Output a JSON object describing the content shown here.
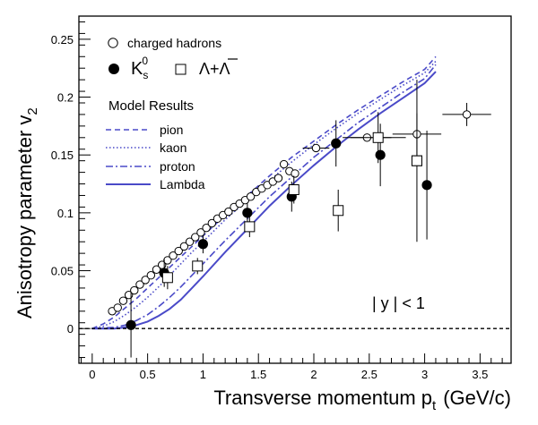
{
  "chart_data": {
    "type": "scatter",
    "xlabel": "Transverse momentum p",
    "xlabel_sub": "t",
    "xlabel_unit": "(GeV/c)",
    "ylabel": "Anisotropy parameter v",
    "ylabel_sub": "2",
    "xlim": [
      -0.12,
      3.78
    ],
    "ylim": [
      -0.03,
      0.27
    ],
    "x_ticks": [
      0,
      0.5,
      1,
      1.5,
      2,
      2.5,
      3,
      3.5
    ],
    "x_tick_labels": [
      "0",
      "0.5",
      "1",
      "1.5",
      "2",
      "2.5",
      "3",
      "3.5"
    ],
    "y_ticks": [
      0,
      0.05,
      0.1,
      0.15,
      0.2,
      0.25
    ],
    "y_tick_labels": [
      "0",
      "0.05",
      "0.1",
      "0.15",
      "0.2",
      "0.25"
    ],
    "grid": false,
    "zero_line": true,
    "annotation": "| y | < 1",
    "legend": {
      "charged_label": "charged hadrons",
      "ks_label": "K",
      "ks_sub": "s",
      "ks_sup": "0",
      "lambda_label": "Λ+Λ",
      "model_title": "Model Results",
      "pion_label": "pion",
      "kaon_label": "kaon",
      "proton_label": "proton",
      "lambda_model_label": "Lambda"
    },
    "colors": {
      "model": "#4a4ac8",
      "axis": "#000000"
    },
    "series": [
      {
        "name": "charged hadrons",
        "marker": "open-circle",
        "points": [
          {
            "x": 0.18,
            "y": 0.015
          },
          {
            "x": 0.23,
            "y": 0.018
          },
          {
            "x": 0.28,
            "y": 0.024
          },
          {
            "x": 0.33,
            "y": 0.029
          },
          {
            "x": 0.38,
            "y": 0.033
          },
          {
            "x": 0.43,
            "y": 0.038
          },
          {
            "x": 0.48,
            "y": 0.042
          },
          {
            "x": 0.53,
            "y": 0.046
          },
          {
            "x": 0.58,
            "y": 0.051
          },
          {
            "x": 0.63,
            "y": 0.055
          },
          {
            "x": 0.68,
            "y": 0.059
          },
          {
            "x": 0.73,
            "y": 0.063
          },
          {
            "x": 0.78,
            "y": 0.067
          },
          {
            "x": 0.83,
            "y": 0.071
          },
          {
            "x": 0.88,
            "y": 0.075
          },
          {
            "x": 0.93,
            "y": 0.079
          },
          {
            "x": 0.98,
            "y": 0.083
          },
          {
            "x": 1.03,
            "y": 0.087
          },
          {
            "x": 1.08,
            "y": 0.091
          },
          {
            "x": 1.13,
            "y": 0.095
          },
          {
            "x": 1.18,
            "y": 0.098
          },
          {
            "x": 1.23,
            "y": 0.101
          },
          {
            "x": 1.28,
            "y": 0.105
          },
          {
            "x": 1.33,
            "y": 0.108
          },
          {
            "x": 1.38,
            "y": 0.111
          },
          {
            "x": 1.43,
            "y": 0.114
          },
          {
            "x": 1.48,
            "y": 0.118
          },
          {
            "x": 1.53,
            "y": 0.121
          },
          {
            "x": 1.58,
            "y": 0.124
          },
          {
            "x": 1.63,
            "y": 0.127
          },
          {
            "x": 1.68,
            "y": 0.13
          },
          {
            "x": 1.73,
            "y": 0.142
          },
          {
            "x": 1.78,
            "y": 0.136
          },
          {
            "x": 1.83,
            "y": 0.134
          },
          {
            "x": 2.02,
            "y": 0.156,
            "xerr": 0.12
          },
          {
            "x": 2.48,
            "y": 0.165,
            "xerr": 0.22
          },
          {
            "x": 2.93,
            "y": 0.168,
            "xerr": 0.22,
            "yerr": 0.018
          },
          {
            "x": 3.38,
            "y": 0.185,
            "xerr": 0.22,
            "yerr": 0.01
          }
        ]
      },
      {
        "name": "K",
        "marker": "filled-circle",
        "points": [
          {
            "x": 0.35,
            "y": 0.003,
            "yerr": 0.028
          },
          {
            "x": 0.65,
            "y": 0.048,
            "yerr": 0.012
          },
          {
            "x": 1.0,
            "y": 0.073,
            "yerr": 0.008
          },
          {
            "x": 1.4,
            "y": 0.1,
            "yerr": 0.008
          },
          {
            "x": 1.8,
            "y": 0.114,
            "yerr": 0.013
          },
          {
            "x": 2.2,
            "y": 0.16,
            "yerr": 0.02
          },
          {
            "x": 2.6,
            "y": 0.15,
            "yerr": 0.027
          },
          {
            "x": 3.02,
            "y": 0.124,
            "yerr": 0.047
          }
        ]
      },
      {
        "name": "Λ+Λ",
        "marker": "open-square",
        "points": [
          {
            "x": 0.68,
            "y": 0.044,
            "yerr": 0.01
          },
          {
            "x": 0.95,
            "y": 0.054,
            "yerr": 0.007
          },
          {
            "x": 1.42,
            "y": 0.088,
            "yerr": 0.009
          },
          {
            "x": 1.82,
            "y": 0.12,
            "yerr": 0.012
          },
          {
            "x": 2.22,
            "y": 0.102,
            "yerr": 0.018
          },
          {
            "x": 2.58,
            "y": 0.165,
            "yerr": 0.022,
            "xerr": 0.25
          },
          {
            "x": 2.93,
            "y": 0.145,
            "yerr": 0.07
          },
          {
            "x": 2.93,
            "y": 0.145
          }
        ]
      },
      {
        "name": "pion",
        "style": "dashed",
        "points": [
          [
            0,
            0
          ],
          [
            0.1,
            0.004
          ],
          [
            0.2,
            0.01
          ],
          [
            0.3,
            0.018
          ],
          [
            0.4,
            0.026
          ],
          [
            0.5,
            0.035
          ],
          [
            0.6,
            0.044
          ],
          [
            0.7,
            0.053
          ],
          [
            0.8,
            0.062
          ],
          [
            0.9,
            0.071
          ],
          [
            1.0,
            0.08
          ],
          [
            1.2,
            0.098
          ],
          [
            1.4,
            0.115
          ],
          [
            1.6,
            0.132
          ],
          [
            1.8,
            0.148
          ],
          [
            2.0,
            0.162
          ],
          [
            2.2,
            0.176
          ],
          [
            2.4,
            0.189
          ],
          [
            2.6,
            0.201
          ],
          [
            2.8,
            0.213
          ],
          [
            3.0,
            0.224
          ],
          [
            3.1,
            0.235
          ]
        ]
      },
      {
        "name": "kaon",
        "style": "dotted",
        "points": [
          [
            0,
            0
          ],
          [
            0.1,
            0.002
          ],
          [
            0.2,
            0.006
          ],
          [
            0.3,
            0.012
          ],
          [
            0.4,
            0.019
          ],
          [
            0.5,
            0.027
          ],
          [
            0.6,
            0.036
          ],
          [
            0.7,
            0.046
          ],
          [
            0.8,
            0.056
          ],
          [
            0.9,
            0.066
          ],
          [
            1.0,
            0.075
          ],
          [
            1.2,
            0.094
          ],
          [
            1.4,
            0.111
          ],
          [
            1.6,
            0.128
          ],
          [
            1.8,
            0.144
          ],
          [
            2.0,
            0.159
          ],
          [
            2.2,
            0.173
          ],
          [
            2.4,
            0.186
          ],
          [
            2.6,
            0.198
          ],
          [
            2.8,
            0.21
          ],
          [
            3.0,
            0.221
          ],
          [
            3.1,
            0.231
          ]
        ]
      },
      {
        "name": "proton",
        "style": "dashdot",
        "points": [
          [
            0,
            0
          ],
          [
            0.2,
            0.001
          ],
          [
            0.3,
            0.003
          ],
          [
            0.4,
            0.007
          ],
          [
            0.5,
            0.012
          ],
          [
            0.6,
            0.019
          ],
          [
            0.7,
            0.027
          ],
          [
            0.8,
            0.036
          ],
          [
            0.9,
            0.046
          ],
          [
            1.0,
            0.056
          ],
          [
            1.2,
            0.076
          ],
          [
            1.4,
            0.095
          ],
          [
            1.6,
            0.114
          ],
          [
            1.8,
            0.131
          ],
          [
            2.0,
            0.148
          ],
          [
            2.2,
            0.163
          ],
          [
            2.4,
            0.178
          ],
          [
            2.6,
            0.191
          ],
          [
            2.8,
            0.204
          ],
          [
            3.0,
            0.216
          ],
          [
            3.1,
            0.228
          ]
        ]
      },
      {
        "name": "Lambda",
        "style": "solid",
        "points": [
          [
            0,
            0
          ],
          [
            0.2,
            0
          ],
          [
            0.3,
            0.001
          ],
          [
            0.4,
            0.003
          ],
          [
            0.5,
            0.006
          ],
          [
            0.6,
            0.011
          ],
          [
            0.7,
            0.017
          ],
          [
            0.8,
            0.025
          ],
          [
            0.9,
            0.035
          ],
          [
            1.0,
            0.045
          ],
          [
            1.2,
            0.066
          ],
          [
            1.4,
            0.086
          ],
          [
            1.6,
            0.106
          ],
          [
            1.8,
            0.124
          ],
          [
            2.0,
            0.141
          ],
          [
            2.2,
            0.157
          ],
          [
            2.4,
            0.172
          ],
          [
            2.6,
            0.186
          ],
          [
            2.8,
            0.199
          ],
          [
            3.0,
            0.212
          ],
          [
            3.1,
            0.222
          ]
        ]
      }
    ]
  }
}
